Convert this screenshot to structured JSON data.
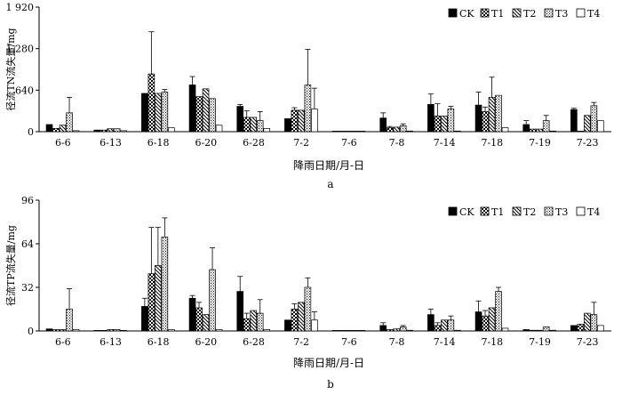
{
  "chart_data": [
    {
      "type": "bar",
      "panel_label": "a",
      "ylabel": "径流TN流失量/mg",
      "xlabel": "降雨日期/月-日",
      "ylim": [
        0,
        1920
      ],
      "yticks": [
        0,
        640,
        1280,
        1920
      ],
      "ytick_labels": [
        "0",
        "640",
        "1 280",
        "1 920"
      ],
      "legend_position": "top-right",
      "grid": false,
      "categories": [
        "6-6",
        "6-13",
        "6-18",
        "6-20",
        "6-28",
        "7-2",
        "7-6",
        "7-8",
        "7-14",
        "7-18",
        "7-19",
        "7-23"
      ],
      "series": [
        {
          "name": "CK",
          "pattern": "solid",
          "values": [
            110,
            25,
            590,
            720,
            390,
            200,
            8,
            210,
            420,
            410,
            110,
            340
          ],
          "errors": [
            0,
            0,
            0,
            130,
            30,
            0,
            0,
            80,
            160,
            200,
            60,
            20
          ]
        },
        {
          "name": "T1",
          "pattern": "check",
          "values": [
            50,
            25,
            890,
            540,
            220,
            330,
            6,
            60,
            240,
            310,
            40,
            0
          ],
          "errors": [
            0,
            0,
            650,
            0,
            100,
            40,
            0,
            20,
            190,
            70,
            0,
            0
          ]
        },
        {
          "name": "T2",
          "pattern": "diagonal",
          "values": [
            100,
            45,
            590,
            660,
            220,
            330,
            6,
            70,
            240,
            530,
            40,
            250
          ],
          "errors": [
            0,
            0,
            0,
            0,
            0,
            0,
            0,
            0,
            0,
            310,
            0,
            0
          ]
        },
        {
          "name": "T3",
          "pattern": "dots",
          "values": [
            290,
            45,
            610,
            510,
            170,
            720,
            6,
            90,
            350,
            560,
            170,
            400
          ],
          "errors": [
            240,
            0,
            40,
            0,
            140,
            550,
            0,
            30,
            40,
            0,
            80,
            50
          ]
        },
        {
          "name": "T4",
          "pattern": "hollow",
          "values": [
            15,
            15,
            60,
            100,
            50,
            350,
            3,
            10,
            10,
            60,
            10,
            170
          ],
          "errors": [
            0,
            0,
            0,
            0,
            0,
            320,
            0,
            0,
            0,
            0,
            0,
            0
          ]
        }
      ]
    },
    {
      "type": "bar",
      "panel_label": "b",
      "ylabel": "径流TP流失量/mg",
      "xlabel": "降雨日期/月-日",
      "ylim": [
        0,
        96
      ],
      "yticks": [
        0,
        32,
        64,
        96
      ],
      "ytick_labels": [
        "0",
        "32",
        "64",
        "96"
      ],
      "legend_position": "top-right",
      "grid": false,
      "categories": [
        "6-6",
        "6-13",
        "6-18",
        "6-20",
        "6-28",
        "7-2",
        "7-6",
        "7-8",
        "7-14",
        "7-18",
        "7-19",
        "7-23"
      ],
      "series": [
        {
          "name": "CK",
          "pattern": "solid",
          "values": [
            1.5,
            0.4,
            18,
            24,
            29,
            8,
            0.3,
            4,
            12,
            14,
            1,
            4
          ],
          "errors": [
            0,
            0,
            6,
            2,
            11,
            0,
            0,
            2,
            4,
            8,
            0,
            0
          ]
        },
        {
          "name": "T1",
          "pattern": "check",
          "values": [
            1,
            0.4,
            42,
            17,
            9,
            16,
            0.2,
            1,
            4,
            11,
            0.5,
            5
          ],
          "errors": [
            0,
            0,
            34,
            4,
            4,
            4,
            0,
            0,
            2,
            4,
            0,
            0
          ]
        },
        {
          "name": "T2",
          "pattern": "diagonal",
          "values": [
            1,
            1,
            48,
            12,
            15,
            21,
            0.3,
            1.5,
            8,
            17,
            0.5,
            13
          ],
          "errors": [
            0,
            0,
            28,
            0,
            0,
            0,
            0,
            0,
            0,
            0,
            0,
            0
          ]
        },
        {
          "name": "T3",
          "pattern": "dots",
          "values": [
            16,
            1,
            69,
            45,
            13,
            32,
            0.3,
            3,
            8,
            29,
            3,
            12
          ],
          "errors": [
            15,
            0,
            14,
            16,
            10,
            7,
            0,
            1,
            3,
            3,
            0,
            9
          ]
        },
        {
          "name": "T4",
          "pattern": "hollow",
          "values": [
            1,
            0.4,
            1,
            1,
            1,
            8,
            0.2,
            0.5,
            0.5,
            2,
            0.5,
            4
          ],
          "errors": [
            0,
            0,
            0,
            0,
            0,
            6,
            0,
            0,
            0,
            0,
            0,
            0
          ]
        }
      ]
    }
  ]
}
